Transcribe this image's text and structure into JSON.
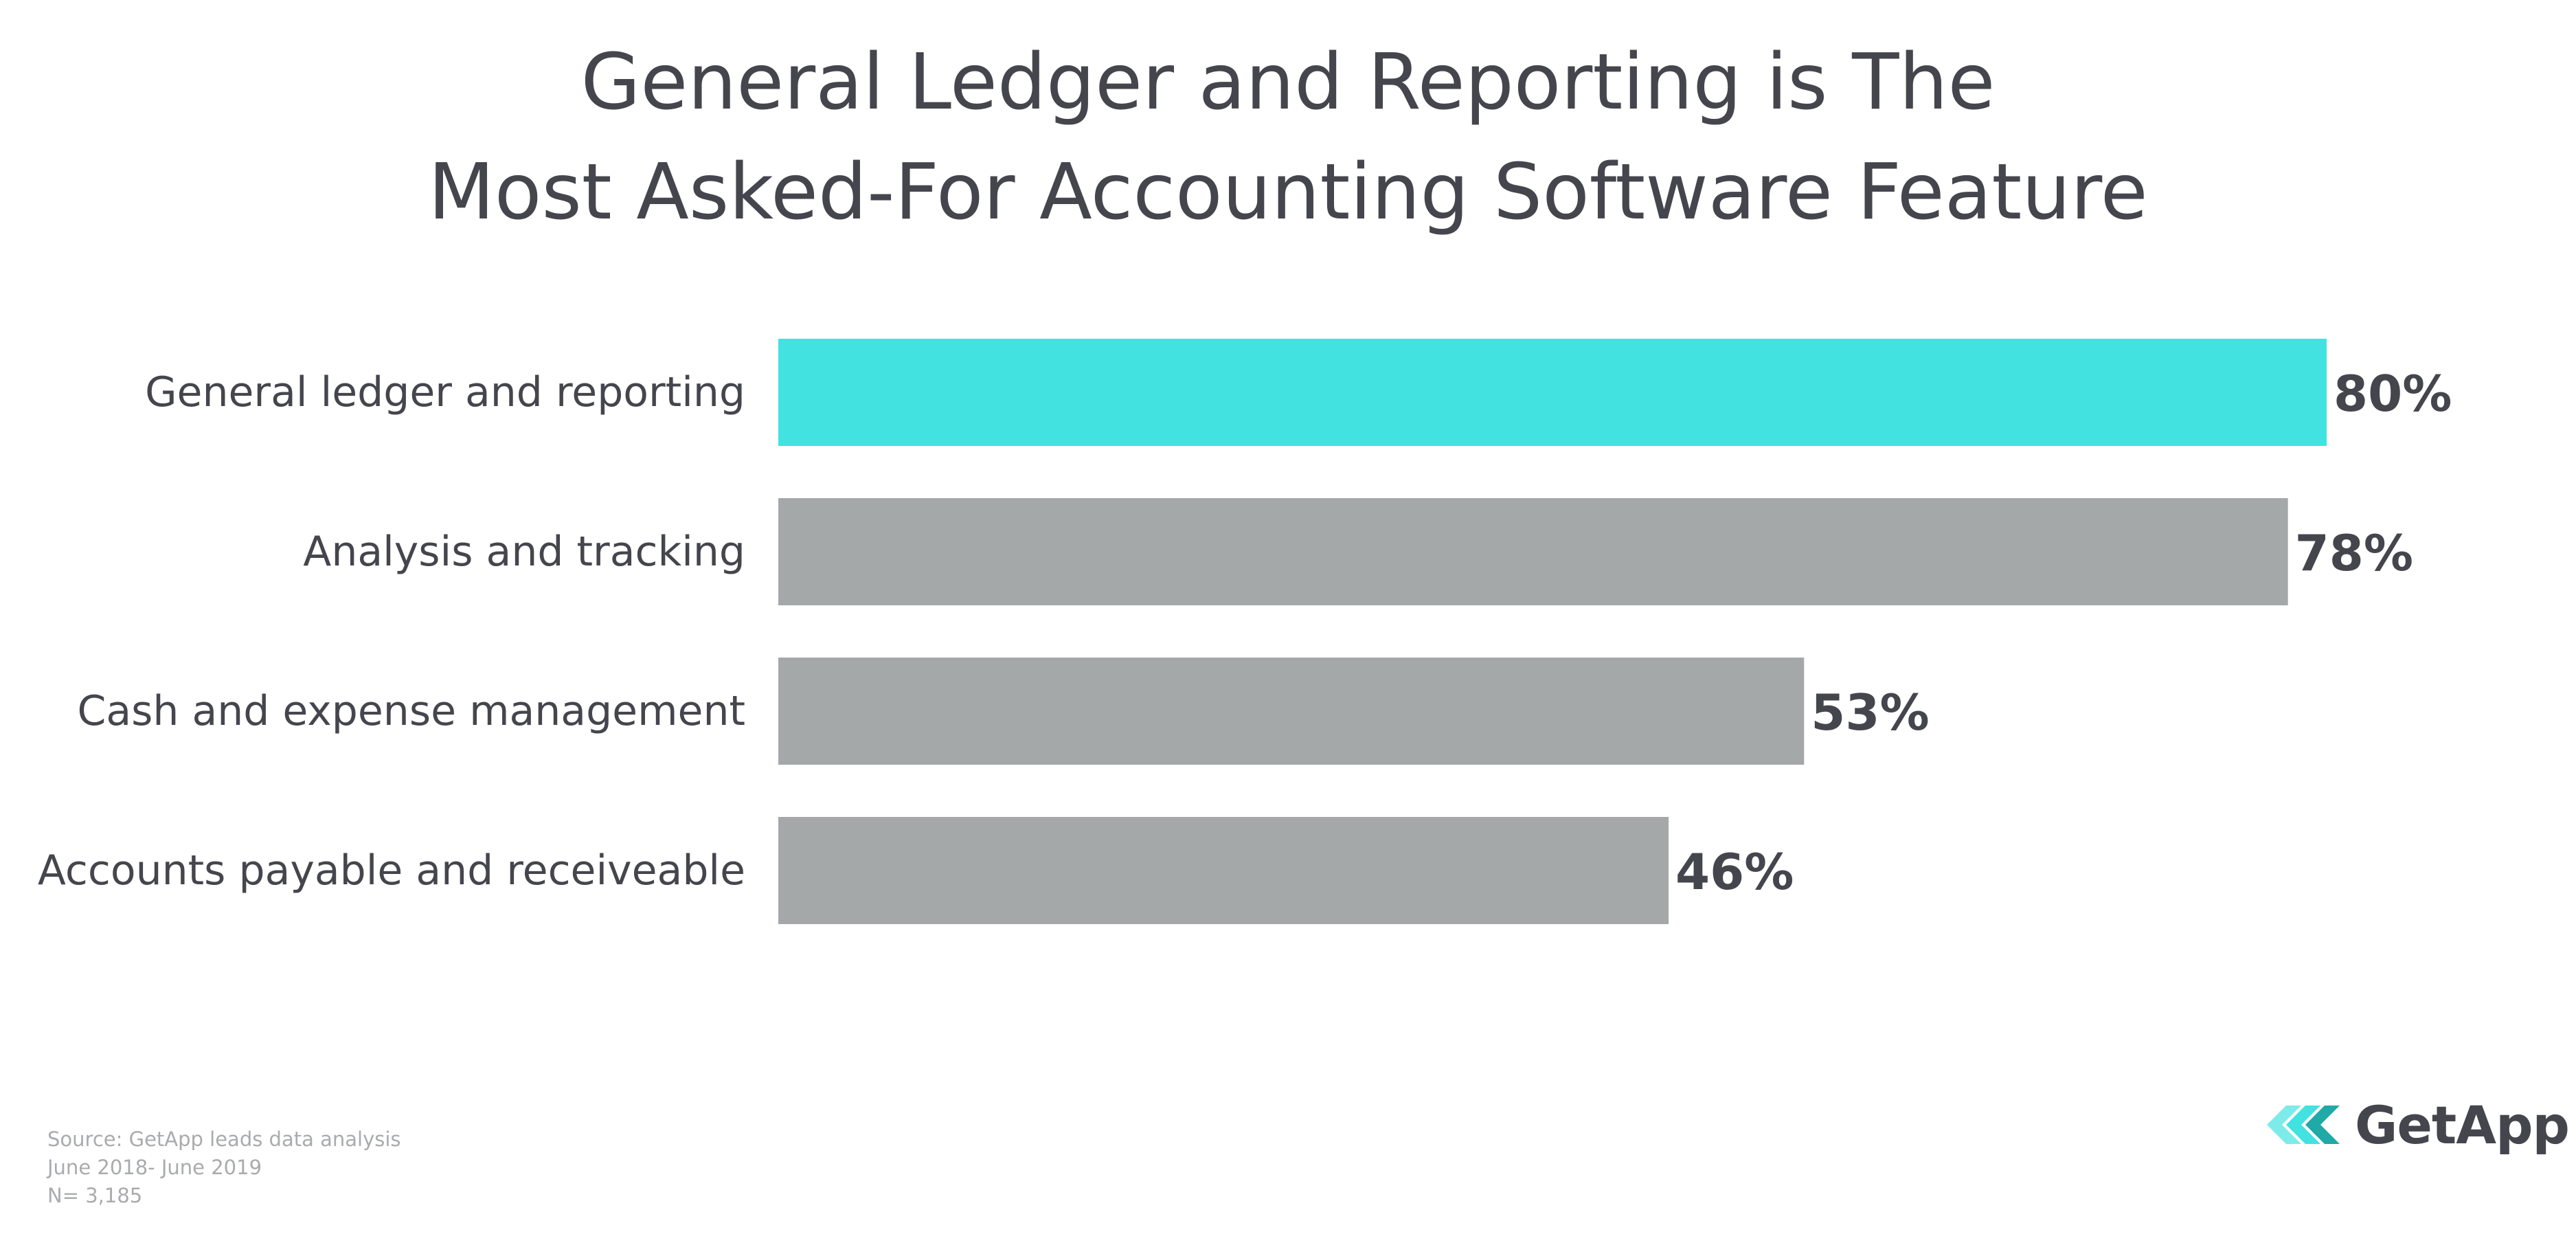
{
  "title_lines": [
    "General Ledger and Reporting is The",
    "Most Asked-For Accounting Software Feature"
  ],
  "source": {
    "line1": "Source: GetApp leads data analysis",
    "line2": "June 2018- June 2019",
    "line3": "N= 3,185"
  },
  "brand": {
    "name": "GetApp",
    "icon": "getapp-chevrons-icon"
  },
  "colors": {
    "highlight": "#41e2e0",
    "bar": "#a5a8a9",
    "text": "#45464d",
    "source": "#a9abad"
  },
  "chart_data": {
    "type": "bar",
    "orientation": "horizontal",
    "title": "General Ledger and Reporting is The Most Asked-For Accounting Software Feature",
    "categories": [
      "General ledger and reporting",
      "Analysis and tracking",
      "Cash and expense management",
      "Accounts payable and receiveable"
    ],
    "values": [
      80,
      78,
      53,
      46
    ],
    "data_labels": [
      "80%",
      "78%",
      "53%",
      "46%"
    ],
    "highlight_index": 0,
    "xlim": [
      0,
      80
    ],
    "grid": false,
    "legend": "none"
  }
}
